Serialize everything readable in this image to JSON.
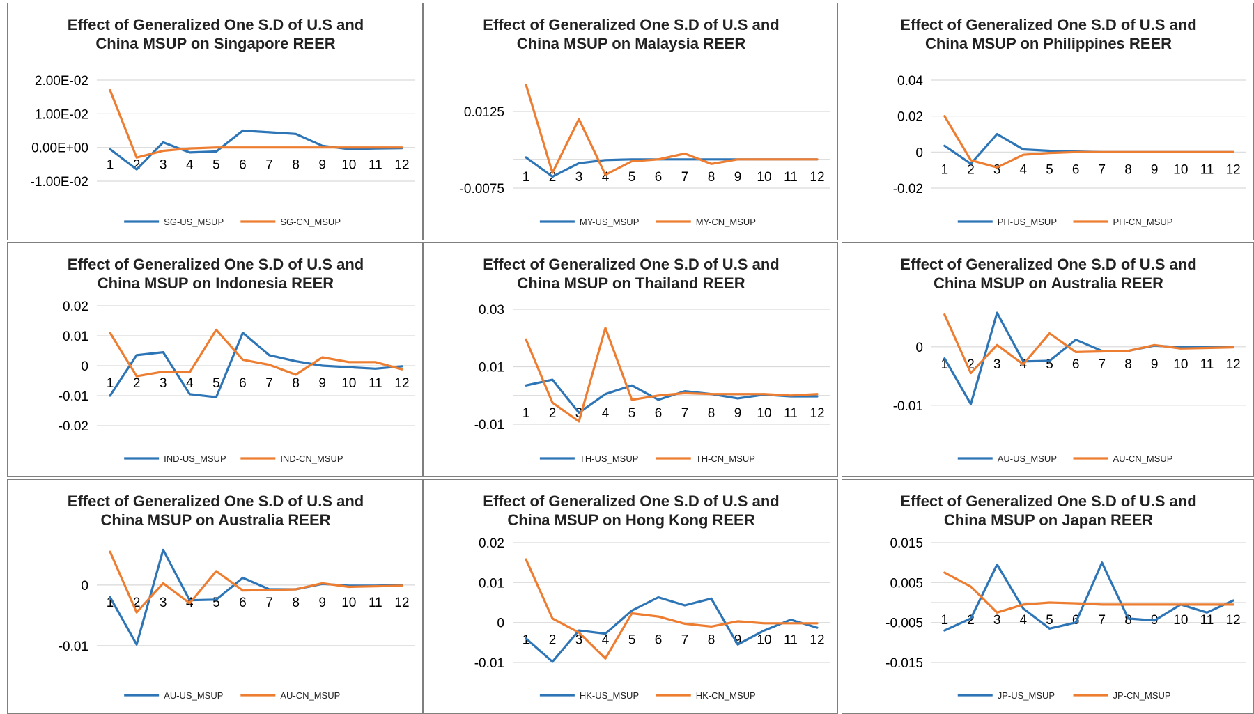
{
  "colors": {
    "us": "#2e75b6",
    "cn": "#ed7d31",
    "grid": "#d9d9d9",
    "border": "#7f7f7f"
  },
  "chart_data": [
    {
      "type": "line",
      "title": [
        "Effect of Generalized One S.D of U.S and",
        "China MSUP on Singapore REER"
      ],
      "x": [
        "1",
        "2",
        "3",
        "4",
        "5",
        "6",
        "7",
        "8",
        "9",
        "10",
        "11",
        "12"
      ],
      "yticks": [
        0.02,
        0.01,
        0,
        -0.01
      ],
      "yticklabels": [
        "2.00E-02",
        "1.00E-02",
        "0.00E+00",
        "-1.00E-02"
      ],
      "ylim": [
        -0.01,
        0.02
      ],
      "series": [
        {
          "name": "SG-US_MSUP",
          "color": "#2e75b6",
          "values": [
            -0.0005,
            -0.0065,
            0.0015,
            -0.0015,
            -0.0012,
            0.005,
            0.0045,
            0.004,
            0.0005,
            -0.0005,
            -0.0003,
            -0.0002
          ]
        },
        {
          "name": "SG-CN_MSUP",
          "color": "#ed7d31",
          "values": [
            0.017,
            -0.003,
            -0.001,
            -0.0003,
            0,
            0,
            0,
            0,
            0,
            0,
            0,
            0
          ]
        }
      ]
    },
    {
      "type": "line",
      "title": [
        "Effect of Generalized One S.D of U.S and",
        "China MSUP on Malaysia REER"
      ],
      "x": [
        "1",
        "2",
        "3",
        "4",
        "5",
        "6",
        "7",
        "8",
        "9",
        "10",
        "11",
        "12"
      ],
      "yticks": [
        0.0125,
        -0.0075
      ],
      "yticklabels": [
        "0.0125",
        "-0.0075"
      ],
      "ylim": [
        -0.0075,
        0.0225
      ],
      "series": [
        {
          "name": "MY-US_MSUP",
          "color": "#2e75b6",
          "values": [
            0.0005,
            -0.0045,
            -0.001,
            -0.0002,
            0,
            0,
            0,
            0,
            0,
            0,
            0,
            0
          ]
        },
        {
          "name": "MY-CN_MSUP",
          "color": "#ed7d31",
          "values": [
            0.0195,
            -0.0035,
            0.0105,
            -0.004,
            -0.0005,
            0,
            0.0015,
            -0.0012,
            0,
            0,
            0,
            0
          ]
        }
      ]
    },
    {
      "type": "line",
      "title": [
        "Effect of Generalized One S.D of U.S and",
        "China MSUP on Philippines REER"
      ],
      "x": [
        "1",
        "2",
        "3",
        "4",
        "5",
        "6",
        "7",
        "8",
        "9",
        "10",
        "11",
        "12"
      ],
      "yticks": [
        0.04,
        0.02,
        0,
        -0.02
      ],
      "yticklabels": [
        "0.04",
        "0.02",
        "0",
        "-0.02"
      ],
      "ylim": [
        -0.02,
        0.04
      ],
      "series": [
        {
          "name": "PH-US_MSUP",
          "color": "#2e75b6",
          "values": [
            0.0035,
            -0.0065,
            0.01,
            0.0015,
            0.0007,
            0.0003,
            0,
            0,
            0,
            0,
            0,
            0
          ]
        },
        {
          "name": "PH-CN_MSUP",
          "color": "#ed7d31",
          "values": [
            0.02,
            -0.0045,
            -0.0085,
            -0.0015,
            -0.0005,
            0,
            0,
            0,
            0,
            0,
            0,
            0
          ]
        }
      ]
    },
    {
      "type": "line",
      "title": [
        "Effect of Generalized One S.D of U.S and",
        "China MSUP on Indonesia REER"
      ],
      "x": [
        "1",
        "2",
        "3",
        "4",
        "5",
        "6",
        "7",
        "8",
        "9",
        "10",
        "11",
        "12"
      ],
      "yticks": [
        0.02,
        0.01,
        0,
        -0.01,
        -0.02
      ],
      "yticklabels": [
        "0.02",
        "0.01",
        "0",
        "-0.01",
        "-0.02"
      ],
      "ylim": [
        -0.02,
        0.02
      ],
      "series": [
        {
          "name": "IND-US_MSUP",
          "color": "#2e75b6",
          "values": [
            -0.01,
            0.0035,
            0.0045,
            -0.0095,
            -0.0105,
            0.011,
            0.0035,
            0.0015,
            0,
            -0.0005,
            -0.001,
            -0.0002
          ]
        },
        {
          "name": "IND-CN_MSUP",
          "color": "#ed7d31",
          "values": [
            0.011,
            -0.0035,
            -0.002,
            -0.0022,
            0.012,
            0.002,
            0.0003,
            -0.003,
            0.0028,
            0.0012,
            0.0012,
            -0.0012
          ]
        }
      ]
    },
    {
      "type": "line",
      "title": [
        "Effect of Generalized One S.D of U.S and",
        "China MSUP on Thailand REER"
      ],
      "x": [
        "1",
        "2",
        "3",
        "4",
        "5",
        "6",
        "7",
        "8",
        "9",
        "10",
        "11",
        "12"
      ],
      "yticks": [
        0.03,
        0.01,
        -0.01
      ],
      "yticklabels": [
        "0.03",
        "0.01",
        "-0.01"
      ],
      "ylim": [
        -0.01,
        0.03
      ],
      "series": [
        {
          "name": "TH-US_MSUP",
          "color": "#2e75b6",
          "values": [
            0.0035,
            0.0055,
            -0.006,
            0.0005,
            0.0035,
            -0.0015,
            0.0015,
            0.0005,
            -0.001,
            0.0003,
            -0.0003,
            -0.0003
          ]
        },
        {
          "name": "TH-CN_MSUP",
          "color": "#ed7d31",
          "values": [
            0.0195,
            -0.0025,
            -0.009,
            0.0235,
            -0.0015,
            0,
            0.0008,
            0.0005,
            0.0005,
            0.0005,
            0,
            0.0005
          ]
        }
      ]
    },
    {
      "type": "line",
      "title": [
        "Effect of Generalized One S.D of U.S and",
        "China MSUP on Australia REER"
      ],
      "x": [
        "1",
        "2",
        "3",
        "4",
        "5",
        "6",
        "7",
        "8",
        "9",
        "10",
        "11",
        "12"
      ],
      "yticks": [
        0,
        -0.01
      ],
      "yticklabels": [
        "0",
        "-0.01"
      ],
      "ylim": [
        -0.013,
        0.007
      ],
      "series": [
        {
          "name": "AU-US_MSUP",
          "color": "#2e75b6",
          "values": [
            -0.002,
            -0.0098,
            0.0058,
            -0.0025,
            -0.0024,
            0.0012,
            -0.0007,
            -0.0007,
            0.0002,
            -0.0001,
            -0.0001,
            0
          ]
        },
        {
          "name": "AU-CN_MSUP",
          "color": "#ed7d31",
          "values": [
            0.0055,
            -0.0045,
            0.0003,
            -0.003,
            0.0023,
            -0.0009,
            -0.0008,
            -0.0007,
            0.0003,
            -0.0003,
            -0.0002,
            -0.0001
          ]
        }
      ]
    },
    {
      "type": "line",
      "title": [
        "Effect of Generalized One S.D of U.S and",
        "China MSUP on Australia REER"
      ],
      "x": [
        "1",
        "2",
        "3",
        "4",
        "5",
        "6",
        "7",
        "8",
        "9",
        "10",
        "11",
        "12"
      ],
      "yticks": [
        0,
        -0.01
      ],
      "yticklabels": [
        "0",
        "-0.01"
      ],
      "ylim": [
        -0.013,
        0.007
      ],
      "series": [
        {
          "name": "AU-US_MSUP",
          "color": "#2e75b6",
          "values": [
            -0.002,
            -0.0098,
            0.0058,
            -0.0025,
            -0.0024,
            0.0012,
            -0.0007,
            -0.0007,
            0.0002,
            -0.0001,
            -0.0001,
            0
          ]
        },
        {
          "name": "AU-CN_MSUP",
          "color": "#ed7d31",
          "values": [
            0.0055,
            -0.0045,
            0.0003,
            -0.003,
            0.0023,
            -0.0009,
            -0.0008,
            -0.0007,
            0.0003,
            -0.0003,
            -0.0002,
            -0.0001
          ]
        }
      ]
    },
    {
      "type": "line",
      "title": [
        "Effect of Generalized One S.D of U.S and",
        "China MSUP on Hong Kong REER"
      ],
      "x": [
        "1",
        "2",
        "3",
        "4",
        "5",
        "6",
        "7",
        "8",
        "9",
        "10",
        "11",
        "12"
      ],
      "yticks": [
        0.02,
        0.01,
        0,
        -0.01
      ],
      "yticklabels": [
        "0.02",
        "0.01",
        "0",
        "-0.01"
      ],
      "ylim": [
        -0.01,
        0.02
      ],
      "series": [
        {
          "name": "HK-US_MSUP",
          "color": "#2e75b6",
          "values": [
            -0.004,
            -0.0098,
            -0.002,
            -0.0028,
            0.003,
            0.0063,
            0.0043,
            0.006,
            -0.0055,
            -0.002,
            0.0007,
            -0.0013
          ]
        },
        {
          "name": "HK-CN_MSUP",
          "color": "#ed7d31",
          "values": [
            0.0158,
            0.001,
            -0.0025,
            -0.009,
            0.0023,
            0.0015,
            -0.0003,
            -0.001,
            0.0003,
            -0.0002,
            -0.0002,
            -0.0002
          ]
        }
      ]
    },
    {
      "type": "line",
      "title": [
        "Effect of Generalized One S.D of U.S and",
        "China MSUP on Japan REER"
      ],
      "x": [
        "1",
        "2",
        "3",
        "4",
        "5",
        "6",
        "7",
        "8",
        "9",
        "10",
        "11",
        "12"
      ],
      "yticks": [
        0.015,
        0.005,
        -0.005,
        -0.015
      ],
      "yticklabels": [
        "0.015",
        "0.005",
        "-0.005",
        "-0.015"
      ],
      "ylim": [
        -0.015,
        0.015
      ],
      "series": [
        {
          "name": "JP-US_MSUP",
          "color": "#2e75b6",
          "values": [
            -0.007,
            -0.004,
            0.0095,
            -0.0015,
            -0.0065,
            -0.005,
            0.01,
            -0.004,
            -0.0045,
            -0.0005,
            -0.0025,
            0.0005
          ]
        },
        {
          "name": "JP-CN_MSUP",
          "color": "#ed7d31",
          "values": [
            0.0075,
            0.004,
            -0.0025,
            -0.0005,
            0,
            -0.0002,
            -0.0005,
            -0.0005,
            -0.0005,
            -0.0005,
            -0.0005,
            -0.0005
          ]
        }
      ]
    }
  ]
}
